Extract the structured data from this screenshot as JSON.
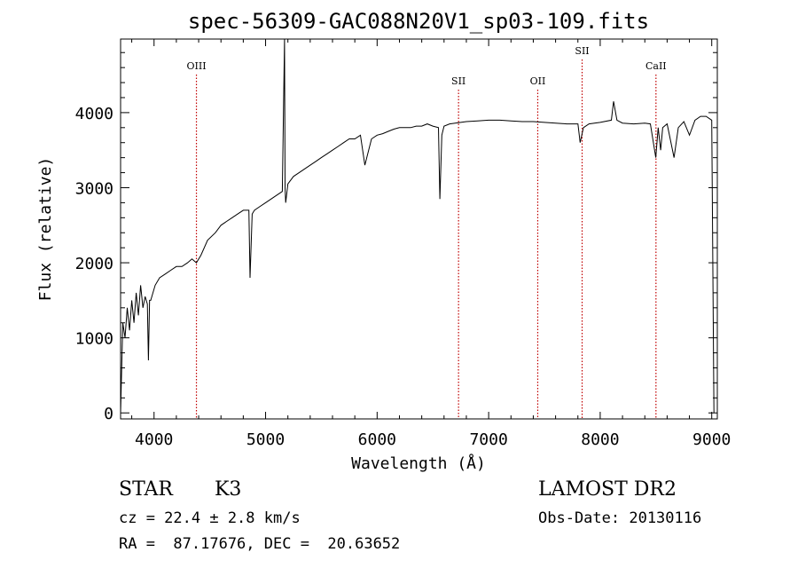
{
  "chart_data": {
    "type": "line",
    "title": "spec-56309-GAC088N20V1_sp03-109.fits",
    "xlabel": "Wavelength (Å)",
    "ylabel": "Flux (relative)",
    "xlim": [
      3700,
      9050
    ],
    "ylim": [
      -80,
      4980
    ],
    "xticks": [
      4000,
      5000,
      6000,
      7000,
      8000,
      9000
    ],
    "yticks": [
      0,
      1000,
      2000,
      3000,
      4000
    ],
    "grid": false,
    "series": [
      {
        "x": [
          3700,
          3720,
          3740,
          3760,
          3780,
          3800,
          3820,
          3840,
          3860,
          3880,
          3900,
          3920,
          3940,
          3950,
          3960,
          3970,
          3990,
          4010,
          4050,
          4100,
          4150,
          4200,
          4250,
          4300,
          4340,
          4380,
          4420,
          4480,
          4550,
          4600,
          4650,
          4700,
          4750,
          4800,
          4850,
          4861,
          4880,
          4900,
          4950,
          5000,
          5050,
          5100,
          5150,
          5170,
          5175,
          5180,
          5200,
          5250,
          5300,
          5350,
          5400,
          5450,
          5500,
          5550,
          5600,
          5650,
          5700,
          5750,
          5800,
          5850,
          5890,
          5950,
          6000,
          6050,
          6100,
          6150,
          6200,
          6250,
          6300,
          6350,
          6400,
          6450,
          6500,
          6550,
          6563,
          6580,
          6600,
          6650,
          6700,
          6750,
          6800,
          6900,
          7000,
          7100,
          7200,
          7300,
          7400,
          7500,
          7600,
          7700,
          7800,
          7820,
          7850,
          7900,
          8000,
          8100,
          8120,
          8150,
          8200,
          8300,
          8400,
          8450,
          8498,
          8520,
          8542,
          8560,
          8600,
          8662,
          8700,
          8750,
          8800,
          8850,
          8900,
          8950,
          9000,
          9020
        ],
        "y": [
          0,
          1200,
          1000,
          1400,
          1100,
          1500,
          1200,
          1600,
          1300,
          1700,
          1400,
          1550,
          1450,
          700,
          1500,
          1500,
          1600,
          1700,
          1800,
          1850,
          1900,
          1950,
          1950,
          2000,
          2050,
          2000,
          2100,
          2300,
          2400,
          2500,
          2550,
          2600,
          2650,
          2700,
          2700,
          1800,
          2650,
          2700,
          2750,
          2800,
          2850,
          2900,
          2950,
          5000,
          3000,
          2800,
          3050,
          3150,
          3200,
          3250,
          3300,
          3350,
          3400,
          3450,
          3500,
          3550,
          3600,
          3650,
          3650,
          3700,
          3300,
          3650,
          3700,
          3720,
          3750,
          3780,
          3800,
          3800,
          3800,
          3820,
          3820,
          3850,
          3820,
          3800,
          2850,
          3700,
          3820,
          3850,
          3860,
          3870,
          3880,
          3890,
          3900,
          3900,
          3890,
          3880,
          3880,
          3870,
          3860,
          3850,
          3850,
          3600,
          3800,
          3850,
          3870,
          3900,
          4150,
          3900,
          3860,
          3850,
          3860,
          3850,
          3400,
          3800,
          3500,
          3800,
          3850,
          3400,
          3800,
          3880,
          3700,
          3900,
          3950,
          3950,
          3900,
          0
        ]
      }
    ],
    "markers": [
      {
        "label": "OIII",
        "x": 4380
      },
      {
        "label": "SII",
        "x": 6730
      },
      {
        "label": "OII",
        "x": 7440
      },
      {
        "label": "SII",
        "x": 7838
      },
      {
        "label": "CaII",
        "x": 8500
      }
    ],
    "line_color": "#000000",
    "marker_color": "#c00000"
  },
  "info": {
    "class": "STAR",
    "subclass": "K3",
    "cz": "cz = 22.4 ± 2.8 km/s",
    "coords": "RA =  87.17676, DEC =  20.63652",
    "survey": "LAMOST DR2",
    "obs_date": "Obs-Date: 20130116"
  }
}
